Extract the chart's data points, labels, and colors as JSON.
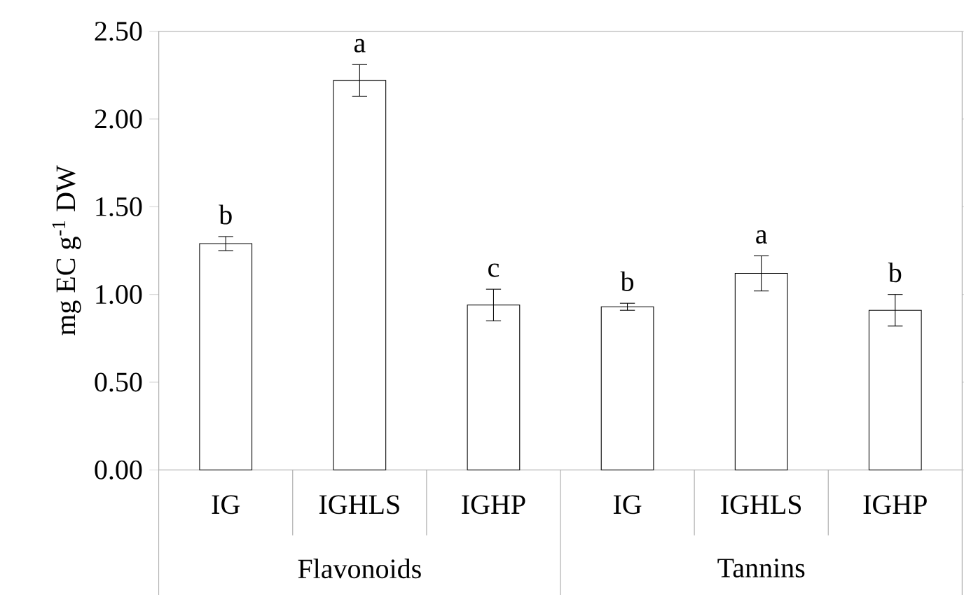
{
  "chart_data": {
    "type": "bar",
    "ylabel": "mg EC g$^{-1}$ DW",
    "categories": [
      "IG",
      "IGHLS",
      "IGHP",
      "IG",
      "IGHLS",
      "IGHP"
    ],
    "values": [
      1.29,
      2.22,
      0.94,
      0.93,
      1.12,
      0.91
    ],
    "errors": [
      0.04,
      0.09,
      0.09,
      0.02,
      0.1,
      0.09
    ],
    "value_labels": [
      "b",
      "a",
      "c",
      "b",
      "a",
      "b"
    ],
    "color": "#ffffff",
    "annotations": [
      "Flavonoids",
      "Tannins"
    ],
    "ylim": [
      0,
      2.5
    ],
    "yticks": [
      {
        "value": 0,
        "label": "0.00"
      },
      {
        "value": 0.5,
        "label": "0.50"
      },
      {
        "value": 1,
        "label": "1.00"
      },
      {
        "value": 1.5,
        "label": "1.50"
      },
      {
        "value": 2,
        "label": "2.00"
      },
      {
        "value": 2.5,
        "label": "2.50"
      }
    ],
    "grid": false
  }
}
